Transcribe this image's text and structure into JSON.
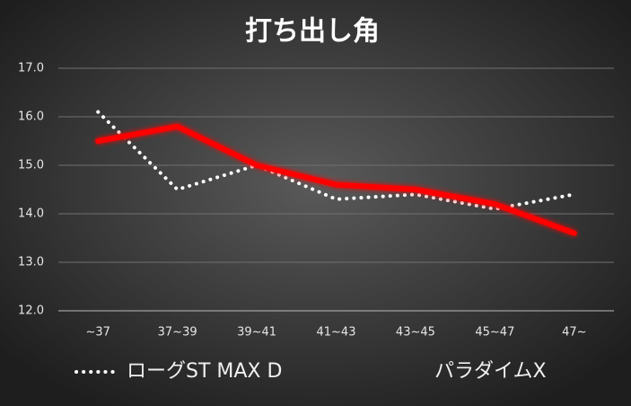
{
  "chart_data": {
    "type": "line",
    "title": "打ち出し角",
    "categories": [
      "~37",
      "37~39",
      "39~41",
      "41~43",
      "43~45",
      "45~47",
      "47~"
    ],
    "series": [
      {
        "name": "ローグST MAX D",
        "color": "#ffffff",
        "values": [
          16.1,
          14.5,
          15.0,
          14.3,
          14.4,
          14.1,
          14.4
        ]
      },
      {
        "name": "パラダイムX",
        "color": "#ff0000",
        "values": [
          15.5,
          15.8,
          15.0,
          14.6,
          14.5,
          14.2,
          13.6
        ]
      }
    ],
    "ylim": [
      12,
      17
    ],
    "yticks": [
      {
        "value": 12,
        "label": "12.0"
      },
      {
        "value": 13,
        "label": "13.0"
      },
      {
        "value": 14,
        "label": "14.0"
      },
      {
        "value": 15,
        "label": "15.0"
      },
      {
        "value": 16,
        "label": "16.0"
      },
      {
        "value": 17,
        "label": "17.0"
      }
    ],
    "grid": true,
    "legend": "bottom"
  }
}
